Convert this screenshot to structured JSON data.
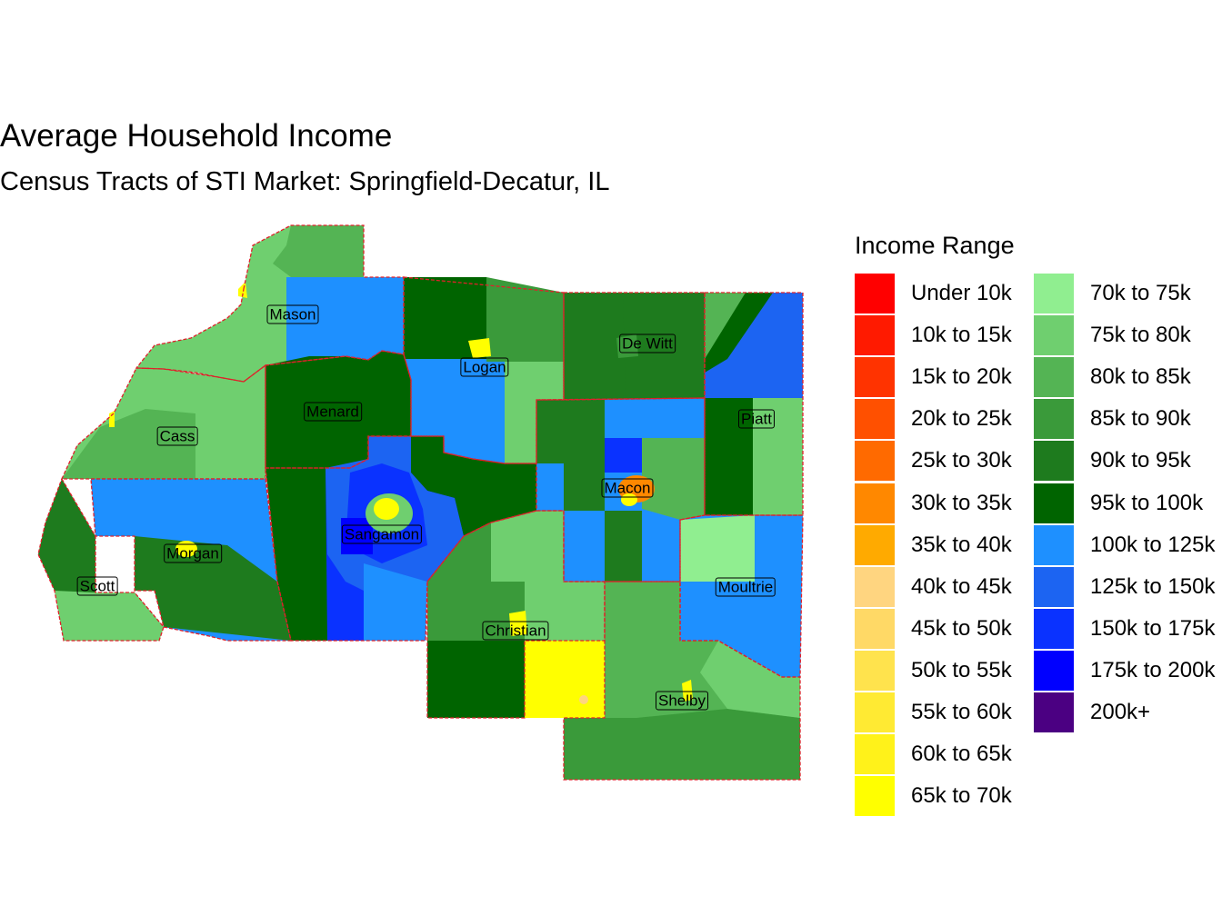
{
  "title": "Average Household Income",
  "subtitle": "Census Tracts of STI Market: Springfield-Decatur, IL",
  "legend": {
    "title": "Income Range",
    "items": [
      {
        "label": "Under 10k",
        "color": "#ff0000"
      },
      {
        "label": "10k to 15k",
        "color": "#ff1a00"
      },
      {
        "label": "15k to 20k",
        "color": "#ff3300"
      },
      {
        "label": "20k to 25k",
        "color": "#ff5000"
      },
      {
        "label": "25k to 30k",
        "color": "#ff6a00"
      },
      {
        "label": "30k to 35k",
        "color": "#ff8800"
      },
      {
        "label": "35k to 40k",
        "color": "#ffaa00"
      },
      {
        "label": "40k to 45k",
        "color": "#ffd580"
      },
      {
        "label": "45k to 50k",
        "color": "#ffd966"
      },
      {
        "label": "50k to 55k",
        "color": "#ffe34d"
      },
      {
        "label": "55k to 60k",
        "color": "#ffea33"
      },
      {
        "label": "60k to 65k",
        "color": "#fff21a"
      },
      {
        "label": "65k to 70k",
        "color": "#ffff00"
      },
      {
        "label": "70k to 75k",
        "color": "#90ee90"
      },
      {
        "label": "75k to 80k",
        "color": "#6fcf6f"
      },
      {
        "label": "80k to 85k",
        "color": "#54b454"
      },
      {
        "label": "85k to 90k",
        "color": "#3a9a3a"
      },
      {
        "label": "90k to 95k",
        "color": "#1e7b1e"
      },
      {
        "label": "95k to 100k",
        "color": "#006400"
      },
      {
        "label": "100k to 125k",
        "color": "#1e90ff"
      },
      {
        "label": "125k to 150k",
        "color": "#1c64f2"
      },
      {
        "label": "150k to 175k",
        "color": "#0a32ff"
      },
      {
        "label": "175k to 200k",
        "color": "#0000ff"
      },
      {
        "label": "200k+",
        "color": "#4b0082"
      }
    ]
  },
  "counties": [
    {
      "name": "Mason",
      "income_range": "75k to 80k"
    },
    {
      "name": "Logan",
      "income_range": "100k to 125k"
    },
    {
      "name": "De Witt",
      "income_range": "90k to 95k"
    },
    {
      "name": "Menard",
      "income_range": "95k to 100k"
    },
    {
      "name": "Piatt",
      "income_range": "95k to 100k"
    },
    {
      "name": "Cass",
      "income_range": "75k to 80k"
    },
    {
      "name": "Macon",
      "income_range": "100k to 125k"
    },
    {
      "name": "Sangamon",
      "income_range": "150k to 175k"
    },
    {
      "name": "Morgan",
      "income_range": "100k to 125k"
    },
    {
      "name": "Scott",
      "income_range": "90k to 95k"
    },
    {
      "name": "Moultrie",
      "income_range": "100k to 125k"
    },
    {
      "name": "Christian",
      "income_range": "85k to 90k"
    },
    {
      "name": "Shelby",
      "income_range": "80k to 85k"
    }
  ]
}
